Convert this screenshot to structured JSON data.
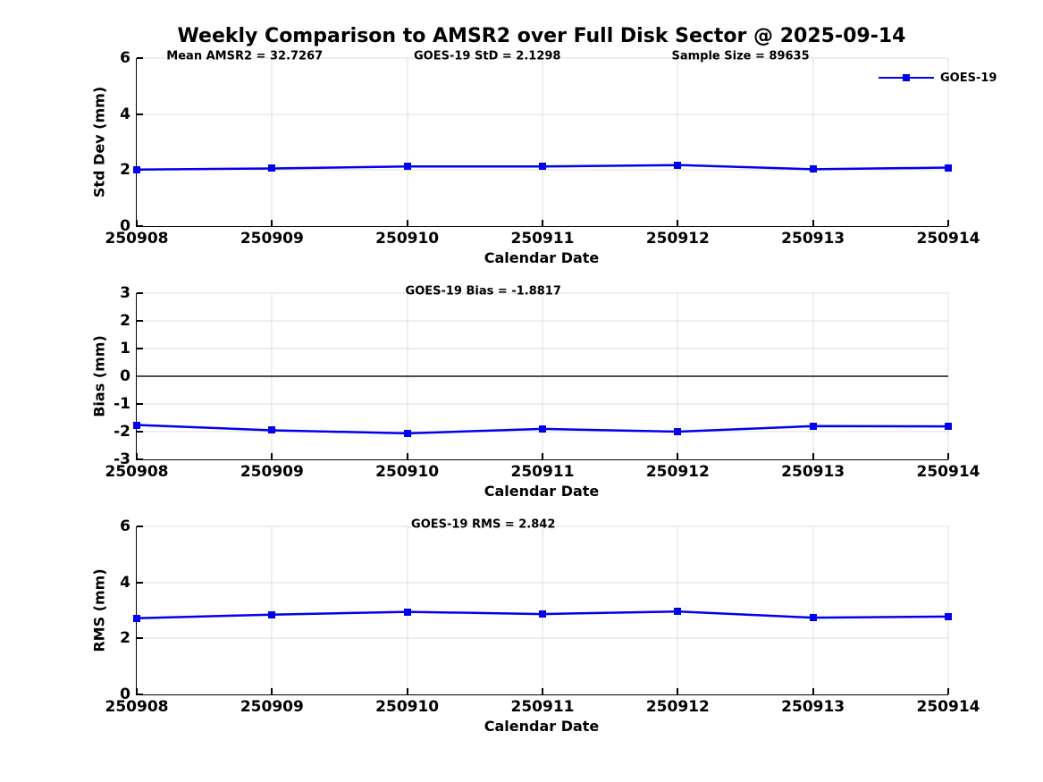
{
  "title": "Weekly Comparison to AMSR2 over Full Disk Sector @ 2025-09-14",
  "legend": {
    "label": "GOES-19"
  },
  "colors": {
    "line": "#0000ee",
    "grid": "#dcdcdc",
    "zero_line": "#4d4d4d",
    "axis": "#000000",
    "text": "#000000"
  },
  "chart_data": [
    {
      "type": "line",
      "title": "",
      "annotations": [
        "Mean AMSR2 = 32.7267",
        "GOES-19 StD = 2.1298",
        "Sample Size = 89635"
      ],
      "categories": [
        "250908",
        "250909",
        "250910",
        "250911",
        "250912",
        "250913",
        "250914"
      ],
      "series": [
        {
          "name": "GOES-19",
          "values": [
            2.02,
            2.06,
            2.13,
            2.13,
            2.18,
            2.03,
            2.09
          ]
        }
      ],
      "xlabel": "Calendar Date",
      "ylabel": "Std Dev (mm)",
      "ylim": [
        0,
        6
      ],
      "yticks": [
        0,
        2,
        4,
        6
      ],
      "grid": true,
      "zero_line": false,
      "legend_position": "northeast",
      "marker": "square"
    },
    {
      "type": "line",
      "title": "",
      "annotations": [
        "GOES-19 Bias  = -1.8817"
      ],
      "categories": [
        "250908",
        "250909",
        "250910",
        "250911",
        "250912",
        "250913",
        "250914"
      ],
      "series": [
        {
          "name": "GOES-19",
          "values": [
            -1.76,
            -1.95,
            -2.06,
            -1.9,
            -2.0,
            -1.8,
            -1.81
          ]
        }
      ],
      "xlabel": "Calendar Date",
      "ylabel": "Bias (mm)",
      "ylim": [
        -3,
        3
      ],
      "yticks": [
        -3,
        -2,
        -1,
        0,
        1,
        2,
        3
      ],
      "grid": true,
      "zero_line": true,
      "marker": "square"
    },
    {
      "type": "line",
      "title": "",
      "annotations": [
        "GOES-19 RMS = 2.842"
      ],
      "categories": [
        "250908",
        "250909",
        "250910",
        "250911",
        "250912",
        "250913",
        "250914"
      ],
      "series": [
        {
          "name": "GOES-19",
          "values": [
            2.72,
            2.85,
            2.95,
            2.87,
            2.96,
            2.74,
            2.78
          ]
        }
      ],
      "xlabel": "Calendar Date",
      "ylabel": "RMS (mm)",
      "ylim": [
        0,
        6
      ],
      "yticks": [
        0,
        2,
        4,
        6
      ],
      "grid": true,
      "zero_line": false,
      "marker": "square"
    }
  ]
}
